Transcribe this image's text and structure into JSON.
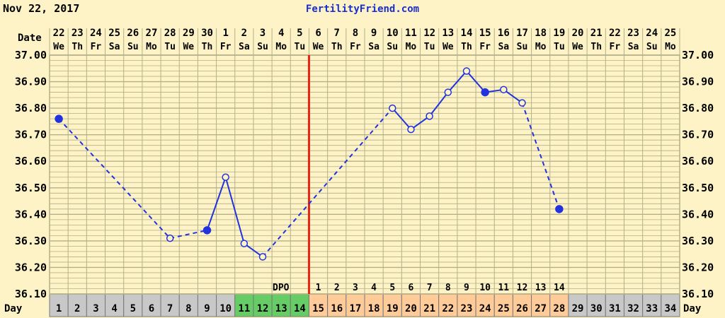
{
  "header": {
    "date": "Nov 22, 2017",
    "site": "FertilityFriend.com"
  },
  "labels": {
    "date_row": "Date",
    "day_row": "Day",
    "dpo": "DPO"
  },
  "colors": {
    "background": "#fdf3c6",
    "grid": "#b4b08a",
    "line": "#2233dd",
    "coverline": "#ee2211",
    "day_gray": "#c8c8c8",
    "day_green": "#66cc66",
    "day_orange": "#ffcc99",
    "site_link": "#1a2fd0"
  },
  "chart_data": {
    "type": "line",
    "title": "",
    "ylim": [
      36.1,
      37.0
    ],
    "y_ticks": [
      "37.00",
      "36.90",
      "36.80",
      "36.70",
      "36.60",
      "36.50",
      "36.40",
      "36.30",
      "36.20",
      "36.10"
    ],
    "date_numbers": [
      "22",
      "23",
      "24",
      "25",
      "26",
      "27",
      "28",
      "29",
      "30",
      "1",
      "2",
      "3",
      "4",
      "5",
      "6",
      "7",
      "8",
      "9",
      "10",
      "11",
      "12",
      "13",
      "14",
      "15",
      "16",
      "17",
      "18",
      "19",
      "20",
      "21",
      "22",
      "23",
      "24",
      "25"
    ],
    "weekdays": [
      "We",
      "Th",
      "Fr",
      "Sa",
      "Su",
      "Mo",
      "Tu",
      "We",
      "Th",
      "Fr",
      "Sa",
      "Su",
      "Mo",
      "Tu",
      "We",
      "Th",
      "Fr",
      "Sa",
      "Su",
      "Mo",
      "Tu",
      "We",
      "Th",
      "Fr",
      "Sa",
      "Su",
      "Mo",
      "Tu",
      "We",
      "Th",
      "Fr",
      "Sa",
      "Su",
      "Mo"
    ],
    "cycle_days": [
      "1",
      "2",
      "3",
      "4",
      "5",
      "6",
      "7",
      "8",
      "9",
      "10",
      "11",
      "12",
      "13",
      "14",
      "15",
      "16",
      "17",
      "18",
      "19",
      "20",
      "21",
      "22",
      "23",
      "24",
      "25",
      "26",
      "27",
      "28",
      "29",
      "30",
      "31",
      "32",
      "33",
      "34"
    ],
    "day_cell_colors": [
      "gray",
      "gray",
      "gray",
      "gray",
      "gray",
      "gray",
      "gray",
      "gray",
      "gray",
      "gray",
      "green",
      "green",
      "green",
      "green",
      "orange",
      "orange",
      "orange",
      "orange",
      "orange",
      "orange",
      "orange",
      "orange",
      "orange",
      "orange",
      "orange",
      "orange",
      "orange",
      "orange",
      "gray",
      "gray",
      "gray",
      "gray",
      "gray",
      "gray"
    ],
    "dpo_numbers": [
      "1",
      "2",
      "3",
      "4",
      "5",
      "6",
      "7",
      "8",
      "9",
      "10",
      "11",
      "12",
      "13",
      "14"
    ],
    "dpo_start_day": 15,
    "coverline_after_day": 14,
    "temperatures": [
      {
        "day": 1,
        "temp": 36.76,
        "marker": "filled"
      },
      {
        "day": 7,
        "temp": 36.31,
        "marker": "open"
      },
      {
        "day": 9,
        "temp": 36.34,
        "marker": "filled"
      },
      {
        "day": 10,
        "temp": 36.54,
        "marker": "open"
      },
      {
        "day": 11,
        "temp": 36.29,
        "marker": "open"
      },
      {
        "day": 12,
        "temp": 36.24,
        "marker": "open"
      },
      {
        "day": 19,
        "temp": 36.8,
        "marker": "open"
      },
      {
        "day": 20,
        "temp": 36.72,
        "marker": "open"
      },
      {
        "day": 21,
        "temp": 36.77,
        "marker": "open"
      },
      {
        "day": 22,
        "temp": 36.86,
        "marker": "open"
      },
      {
        "day": 23,
        "temp": 36.94,
        "marker": "open"
      },
      {
        "day": 24,
        "temp": 36.86,
        "marker": "filled"
      },
      {
        "day": 25,
        "temp": 36.87,
        "marker": "open"
      },
      {
        "day": 26,
        "temp": 36.82,
        "marker": "open"
      },
      {
        "day": 28,
        "temp": 36.42,
        "marker": "filled"
      }
    ],
    "segments": [
      {
        "from": 1,
        "to": 7,
        "style": "dashed"
      },
      {
        "from": 7,
        "to": 9,
        "style": "dashed"
      },
      {
        "from": 9,
        "to": 10,
        "style": "solid"
      },
      {
        "from": 10,
        "to": 11,
        "style": "solid"
      },
      {
        "from": 11,
        "to": 12,
        "style": "solid"
      },
      {
        "from": 12,
        "to": 19,
        "style": "dashed"
      },
      {
        "from": 19,
        "to": 20,
        "style": "solid"
      },
      {
        "from": 20,
        "to": 21,
        "style": "solid"
      },
      {
        "from": 21,
        "to": 22,
        "style": "solid"
      },
      {
        "from": 22,
        "to": 23,
        "style": "solid"
      },
      {
        "from": 23,
        "to": 24,
        "style": "solid"
      },
      {
        "from": 24,
        "to": 25,
        "style": "solid"
      },
      {
        "from": 25,
        "to": 26,
        "style": "solid"
      },
      {
        "from": 26,
        "to": 28,
        "style": "dashed"
      }
    ]
  }
}
